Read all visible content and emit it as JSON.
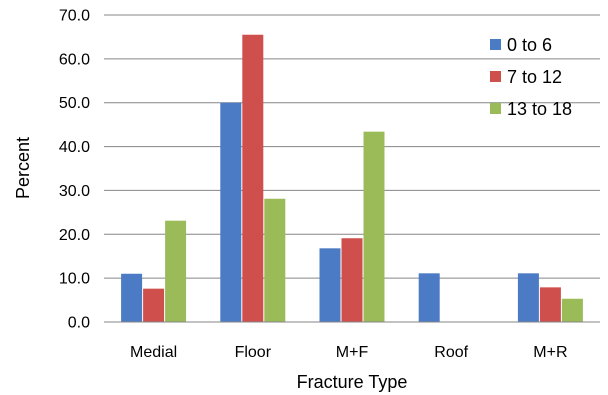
{
  "chart_data": {
    "type": "bar",
    "title": "",
    "xlabel": "Fracture Type",
    "ylabel": "Percent",
    "ylim": [
      0,
      70
    ],
    "ytick_labels": [
      "0.0",
      "10.0",
      "20.0",
      "30.0",
      "40.0",
      "50.0",
      "60.0",
      "70.0"
    ],
    "categories": [
      "Medial",
      "Floor",
      "M+F",
      "Roof",
      "M+R"
    ],
    "series": [
      {
        "name": "0 to 6",
        "color": "#4a7bc4",
        "values": [
          11.0,
          50.0,
          16.8,
          11.1,
          11.1
        ]
      },
      {
        "name": "7 to 12",
        "color": "#cf4f4c",
        "values": [
          7.6,
          65.5,
          19.1,
          0,
          7.9
        ]
      },
      {
        "name": "13 to 18",
        "color": "#9bbb59",
        "values": [
          23.1,
          28.1,
          43.4,
          0,
          5.3
        ]
      }
    ],
    "grid": true,
    "legend": "top-right"
  }
}
